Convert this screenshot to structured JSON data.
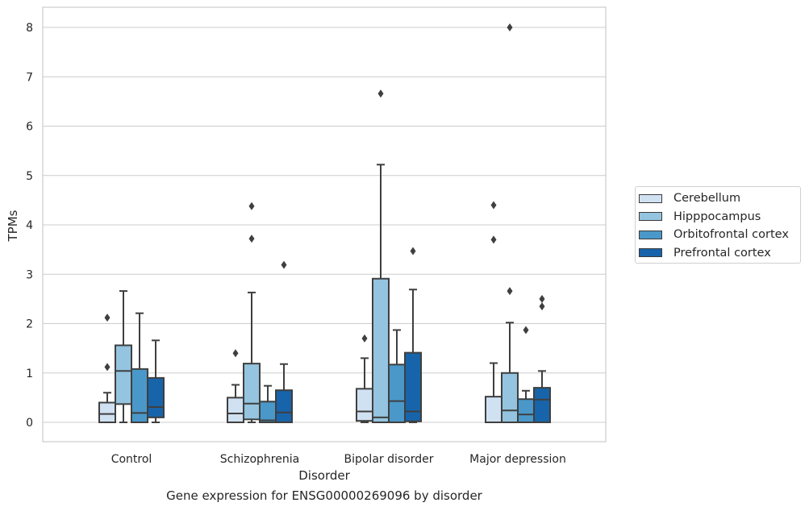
{
  "chart_data": {
    "type": "box",
    "title": "Gene expression for ENSG00000269096 by disorder",
    "xlabel": "Disorder",
    "ylabel": "TPMs",
    "ylim": [
      -0.4,
      8.4
    ],
    "yticks": [
      "0",
      "1",
      "2",
      "3",
      "4",
      "5",
      "6",
      "7",
      "8"
    ],
    "grid": true,
    "legend_position": "right",
    "categories": [
      "Control",
      "Schizophrenia",
      "Bipolar disorder",
      "Major depression"
    ],
    "series": [
      {
        "name": "Cerebellum",
        "color": "#d0e1f2",
        "boxes": [
          {
            "whislo": 0.0,
            "q1": 0.0,
            "med": 0.17,
            "q3": 0.4,
            "whishi": 0.6,
            "fliers": [
              1.12,
              2.12
            ]
          },
          {
            "whislo": 0.0,
            "q1": 0.0,
            "med": 0.18,
            "q3": 0.5,
            "whishi": 0.76,
            "fliers": [
              1.4
            ]
          },
          {
            "whislo": 0.0,
            "q1": 0.03,
            "med": 0.22,
            "q3": 0.68,
            "whishi": 1.3,
            "fliers": [
              1.7
            ]
          },
          {
            "whislo": 0.0,
            "q1": 0.0,
            "med": 0.0,
            "q3": 0.52,
            "whishi": 1.2,
            "fliers": [
              3.7,
              4.4
            ]
          }
        ]
      },
      {
        "name": "Hipppocampus",
        "color": "#94c4df",
        "boxes": [
          {
            "whislo": 0.0,
            "q1": 0.37,
            "med": 1.04,
            "q3": 1.56,
            "whishi": 2.66,
            "fliers": []
          },
          {
            "whislo": 0.0,
            "q1": 0.06,
            "med": 0.38,
            "q3": 1.19,
            "whishi": 2.63,
            "fliers": [
              3.72,
              4.38
            ]
          },
          {
            "whislo": 0.0,
            "q1": 0.0,
            "med": 0.1,
            "q3": 2.91,
            "whishi": 5.22,
            "fliers": [
              6.66
            ]
          },
          {
            "whislo": 0.0,
            "q1": 0.0,
            "med": 0.24,
            "q3": 1.0,
            "whishi": 2.02,
            "fliers": [
              2.66,
              8.0
            ]
          }
        ]
      },
      {
        "name": "Orbitofrontal cortex",
        "color": "#4a98c9",
        "boxes": [
          {
            "whislo": 0.0,
            "q1": 0.0,
            "med": 0.19,
            "q3": 1.08,
            "whishi": 2.21,
            "fliers": []
          },
          {
            "whislo": 0.0,
            "q1": 0.0,
            "med": 0.04,
            "q3": 0.42,
            "whishi": 0.74,
            "fliers": []
          },
          {
            "whislo": 0.0,
            "q1": 0.0,
            "med": 0.43,
            "q3": 1.17,
            "whishi": 1.87,
            "fliers": []
          },
          {
            "whislo": 0.0,
            "q1": 0.0,
            "med": 0.16,
            "q3": 0.47,
            "whishi": 0.64,
            "fliers": [
              1.87
            ]
          }
        ]
      },
      {
        "name": "Prefrontal cortex",
        "color": "#1764ab",
        "boxes": [
          {
            "whislo": 0.0,
            "q1": 0.1,
            "med": 0.31,
            "q3": 0.9,
            "whishi": 1.66,
            "fliers": []
          },
          {
            "whislo": 0.0,
            "q1": 0.0,
            "med": 0.2,
            "q3": 0.65,
            "whishi": 1.18,
            "fliers": [
              3.19
            ]
          },
          {
            "whislo": 0.0,
            "q1": 0.02,
            "med": 0.22,
            "q3": 1.41,
            "whishi": 2.69,
            "fliers": [
              3.47
            ]
          },
          {
            "whislo": 0.0,
            "q1": 0.0,
            "med": 0.46,
            "q3": 0.7,
            "whishi": 1.04,
            "fliers": [
              2.35,
              2.5
            ]
          }
        ]
      }
    ]
  }
}
